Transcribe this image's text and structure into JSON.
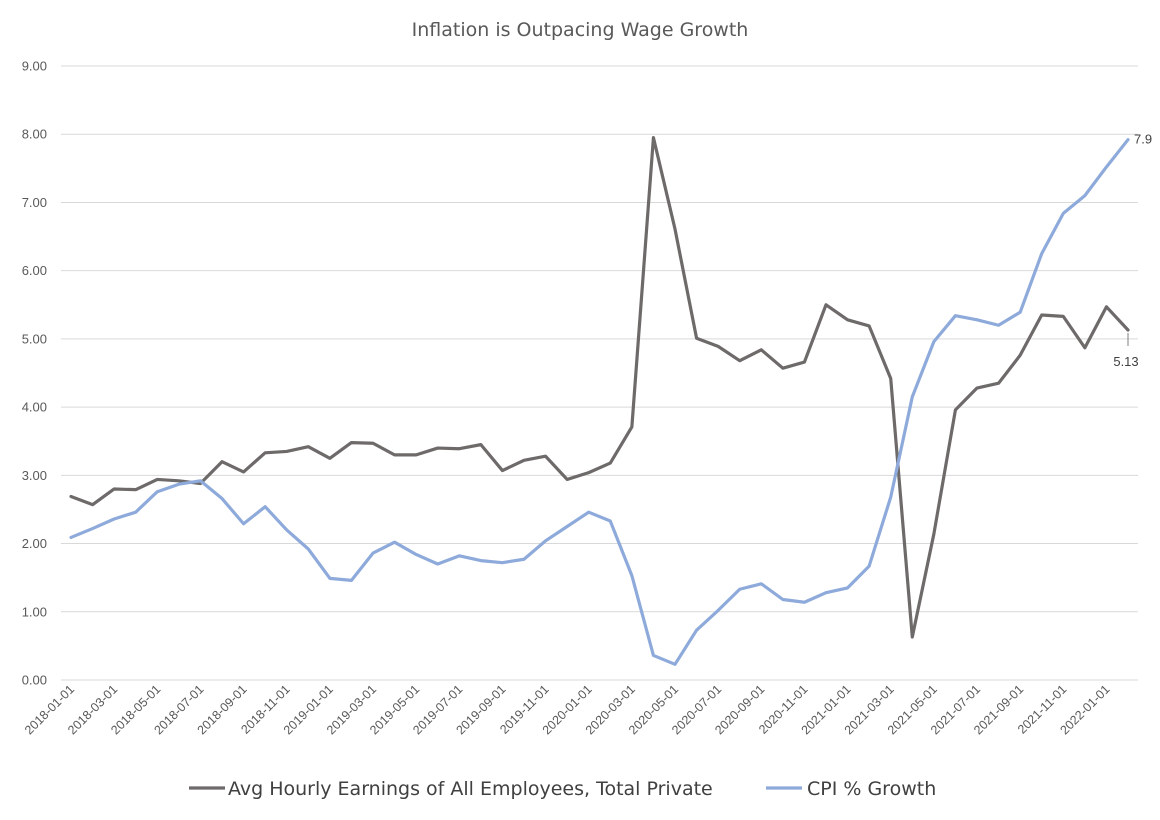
{
  "chart_data": {
    "type": "line",
    "title": "Inflation is Outpacing Wage Growth",
    "xlabel": "",
    "ylabel": "",
    "ylim": [
      0,
      9
    ],
    "yticks": [
      "0.00",
      "1.00",
      "2.00",
      "3.00",
      "4.00",
      "5.00",
      "6.00",
      "7.00",
      "8.00",
      "9.00"
    ],
    "grid": true,
    "legend_position": "bottom",
    "x": [
      "2018-01-01",
      "2018-02-01",
      "2018-03-01",
      "2018-04-01",
      "2018-05-01",
      "2018-06-01",
      "2018-07-01",
      "2018-08-01",
      "2018-09-01",
      "2018-10-01",
      "2018-11-01",
      "2018-12-01",
      "2019-01-01",
      "2019-02-01",
      "2019-03-01",
      "2019-04-01",
      "2019-05-01",
      "2019-06-01",
      "2019-07-01",
      "2019-08-01",
      "2019-09-01",
      "2019-10-01",
      "2019-11-01",
      "2019-12-01",
      "2020-01-01",
      "2020-02-01",
      "2020-03-01",
      "2020-04-01",
      "2020-05-01",
      "2020-06-01",
      "2020-07-01",
      "2020-08-01",
      "2020-09-01",
      "2020-10-01",
      "2020-11-01",
      "2020-12-01",
      "2021-01-01",
      "2021-02-01",
      "2021-03-01",
      "2021-04-01",
      "2021-05-01",
      "2021-06-01",
      "2021-07-01",
      "2021-08-01",
      "2021-09-01",
      "2021-10-01",
      "2021-11-01",
      "2021-12-01",
      "2022-01-01",
      "2022-02-01"
    ],
    "xtick_labels": [
      "2018-01-01",
      "2018-03-01",
      "2018-05-01",
      "2018-07-01",
      "2018-09-01",
      "2018-11-01",
      "2019-01-01",
      "2019-03-01",
      "2019-05-01",
      "2019-07-01",
      "2019-09-01",
      "2019-11-01",
      "2020-01-01",
      "2020-03-01",
      "2020-05-01",
      "2020-07-01",
      "2020-09-01",
      "2020-11-01",
      "2021-01-01",
      "2021-03-01",
      "2021-05-01",
      "2021-07-01",
      "2021-09-01",
      "2021-11-01",
      "2022-01-01"
    ],
    "series": [
      {
        "name": "Avg Hourly Earnings of All Employees, Total Private",
        "color": "#6e6a6a",
        "values": [
          2.69,
          2.57,
          2.8,
          2.79,
          2.94,
          2.92,
          2.88,
          3.2,
          3.05,
          3.33,
          3.35,
          3.42,
          3.25,
          3.48,
          3.47,
          3.3,
          3.3,
          3.4,
          3.39,
          3.45,
          3.07,
          3.22,
          3.28,
          2.94,
          3.04,
          3.18,
          3.71,
          7.95,
          6.61,
          5.01,
          4.89,
          4.68,
          4.84,
          4.57,
          4.66,
          5.5,
          5.28,
          5.19,
          4.42,
          0.63,
          2.14,
          3.96,
          4.28,
          4.35,
          4.76,
          5.35,
          5.33,
          4.87,
          5.47,
          5.13
        ],
        "end_label": "5.13"
      },
      {
        "name": "CPI % Growth",
        "color": "#8eaadb",
        "values": [
          2.09,
          2.22,
          2.36,
          2.46,
          2.76,
          2.87,
          2.92,
          2.66,
          2.29,
          2.54,
          2.2,
          1.92,
          1.49,
          1.46,
          1.86,
          2.02,
          1.84,
          1.7,
          1.82,
          1.75,
          1.72,
          1.77,
          2.04,
          2.25,
          2.46,
          2.33,
          1.53,
          0.36,
          0.23,
          0.73,
          1.02,
          1.33,
          1.41,
          1.18,
          1.14,
          1.28,
          1.35,
          1.67,
          2.68,
          4.15,
          4.96,
          5.34,
          5.28,
          5.2,
          5.39,
          6.25,
          6.84,
          7.1,
          7.52,
          7.92
        ],
        "end_label": "7.9"
      }
    ]
  }
}
